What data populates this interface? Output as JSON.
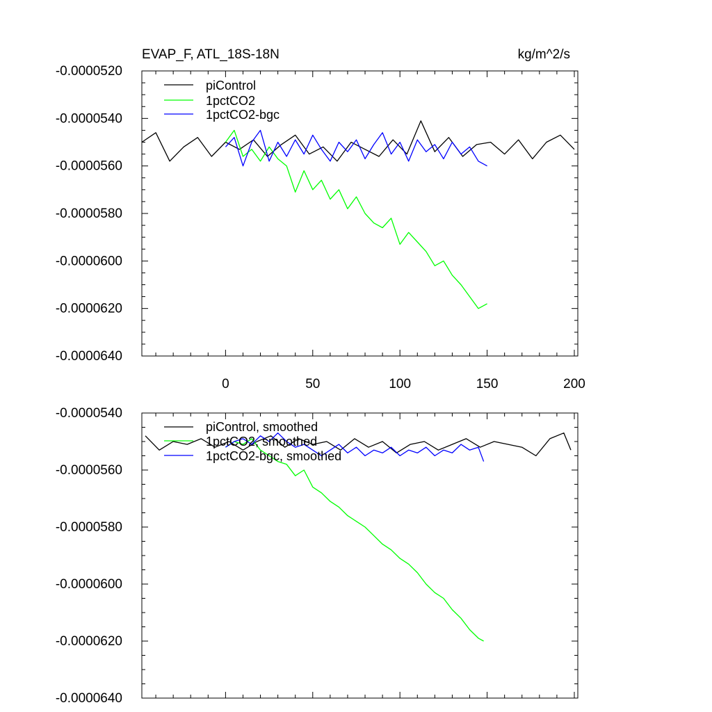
{
  "chart_data": [
    {
      "type": "line",
      "title": "EVAP_F, ATL_18S-18N",
      "units": "kg/m^2/s",
      "xlim": [
        -48,
        202
      ],
      "ylim": [
        -6.4e-05,
        -5.2e-05
      ],
      "x_ticks": [
        0,
        50,
        100,
        150,
        200
      ],
      "x_tick_labels": [
        "0",
        "50",
        "100",
        "150",
        "200"
      ],
      "y_ticks": [
        -5.2e-05,
        -5.4e-05,
        -5.6e-05,
        -5.8e-05,
        -6e-05,
        -6.2e-05,
        -6.4e-05
      ],
      "y_tick_labels": [
        "-0.0000520",
        "-0.0000540",
        "-0.0000560",
        "-0.0000580",
        "-0.0000600",
        "-0.0000620",
        "-0.0000640"
      ],
      "legend_position": "top-left",
      "series": [
        {
          "name": "piControl",
          "color": "#000000",
          "x": [
            -48,
            -40,
            -32,
            -24,
            -16,
            -8,
            0,
            8,
            16,
            24,
            32,
            40,
            48,
            56,
            64,
            72,
            80,
            88,
            96,
            104,
            112,
            120,
            128,
            136,
            144,
            152,
            160,
            168,
            176,
            184,
            192,
            200
          ],
          "y": [
            -5.5e-05,
            -5.46e-05,
            -5.58e-05,
            -5.52e-05,
            -5.48e-05,
            -5.56e-05,
            -5.5e-05,
            -5.53e-05,
            -5.49e-05,
            -5.56e-05,
            -5.51e-05,
            -5.47e-05,
            -5.55e-05,
            -5.52e-05,
            -5.58e-05,
            -5.5e-05,
            -5.53e-05,
            -5.56e-05,
            -5.49e-05,
            -5.55e-05,
            -5.41e-05,
            -5.54e-05,
            -5.48e-05,
            -5.56e-05,
            -5.51e-05,
            -5.5e-05,
            -5.55e-05,
            -5.49e-05,
            -5.57e-05,
            -5.5e-05,
            -5.47e-05,
            -5.53e-05
          ]
        },
        {
          "name": "1pctCO2",
          "color": "#00ff00",
          "x": [
            0,
            5,
            10,
            15,
            20,
            25,
            30,
            35,
            40,
            45,
            50,
            55,
            60,
            65,
            70,
            75,
            80,
            85,
            90,
            95,
            100,
            105,
            110,
            115,
            120,
            125,
            130,
            135,
            140,
            145,
            150
          ],
          "y": [
            -5.5e-05,
            -5.45e-05,
            -5.56e-05,
            -5.53e-05,
            -5.58e-05,
            -5.52e-05,
            -5.57e-05,
            -5.6e-05,
            -5.71e-05,
            -5.62e-05,
            -5.7e-05,
            -5.66e-05,
            -5.74e-05,
            -5.7e-05,
            -5.78e-05,
            -5.73e-05,
            -5.8e-05,
            -5.84e-05,
            -5.86e-05,
            -5.82e-05,
            -5.93e-05,
            -5.88e-05,
            -5.92e-05,
            -5.96e-05,
            -6.02e-05,
            -6e-05,
            -6.06e-05,
            -6.1e-05,
            -6.15e-05,
            -6.2e-05,
            -6.18e-05
          ]
        },
        {
          "name": "1pctCO2-bgc",
          "color": "#0000ff",
          "x": [
            0,
            5,
            10,
            15,
            20,
            25,
            30,
            35,
            40,
            45,
            50,
            55,
            60,
            65,
            70,
            75,
            80,
            85,
            90,
            95,
            100,
            105,
            110,
            115,
            120,
            125,
            130,
            135,
            140,
            145,
            150
          ],
          "y": [
            -5.52e-05,
            -5.48e-05,
            -5.6e-05,
            -5.5e-05,
            -5.45e-05,
            -5.58e-05,
            -5.5e-05,
            -5.56e-05,
            -5.49e-05,
            -5.55e-05,
            -5.47e-05,
            -5.53e-05,
            -5.58e-05,
            -5.5e-05,
            -5.54e-05,
            -5.49e-05,
            -5.57e-05,
            -5.51e-05,
            -5.46e-05,
            -5.55e-05,
            -5.5e-05,
            -5.58e-05,
            -5.49e-05,
            -5.54e-05,
            -5.51e-05,
            -5.57e-05,
            -5.5e-05,
            -5.55e-05,
            -5.52e-05,
            -5.58e-05,
            -5.6e-05
          ]
        }
      ]
    },
    {
      "type": "line",
      "title": "",
      "units": "",
      "xlim": [
        -48,
        202
      ],
      "ylim": [
        -6.4e-05,
        -5.4e-05
      ],
      "x_ticks": [
        0,
        50,
        100,
        150,
        200
      ],
      "x_tick_labels": [],
      "y_ticks": [
        -5.4e-05,
        -5.6e-05,
        -5.8e-05,
        -6e-05,
        -6.2e-05,
        -6.4e-05
      ],
      "y_tick_labels": [
        "-0.0000540",
        "-0.0000560",
        "-0.0000580",
        "-0.0000600",
        "-0.0000620",
        "-0.0000640"
      ],
      "legend_position": "top-left",
      "series": [
        {
          "name": "piControl, smoothed",
          "color": "#000000",
          "x": [
            -46,
            -38,
            -30,
            -22,
            -14,
            -6,
            2,
            10,
            18,
            26,
            34,
            42,
            50,
            58,
            66,
            74,
            82,
            90,
            98,
            106,
            114,
            122,
            130,
            138,
            146,
            154,
            162,
            170,
            178,
            186,
            194,
            198
          ],
          "y": [
            -5.48e-05,
            -5.53e-05,
            -5.5e-05,
            -5.51e-05,
            -5.49e-05,
            -5.52e-05,
            -5.5e-05,
            -5.53e-05,
            -5.5e-05,
            -5.48e-05,
            -5.52e-05,
            -5.49e-05,
            -5.51e-05,
            -5.5e-05,
            -5.53e-05,
            -5.49e-05,
            -5.52e-05,
            -5.5e-05,
            -5.54e-05,
            -5.51e-05,
            -5.5e-05,
            -5.53e-05,
            -5.51e-05,
            -5.49e-05,
            -5.52e-05,
            -5.5e-05,
            -5.51e-05,
            -5.52e-05,
            -5.55e-05,
            -5.49e-05,
            -5.47e-05,
            -5.53e-05
          ]
        },
        {
          "name": "1pctCO2, smoothed",
          "color": "#00ff00",
          "x": [
            0,
            5,
            10,
            15,
            20,
            25,
            30,
            35,
            40,
            45,
            50,
            55,
            60,
            65,
            70,
            75,
            80,
            85,
            90,
            95,
            100,
            105,
            110,
            115,
            120,
            125,
            130,
            135,
            140,
            145,
            148
          ],
          "y": [
            -5.52e-05,
            -5.5e-05,
            -5.51e-05,
            -5.49e-05,
            -5.53e-05,
            -5.55e-05,
            -5.57e-05,
            -5.58e-05,
            -5.62e-05,
            -5.6e-05,
            -5.66e-05,
            -5.68e-05,
            -5.71e-05,
            -5.73e-05,
            -5.76e-05,
            -5.78e-05,
            -5.8e-05,
            -5.83e-05,
            -5.86e-05,
            -5.88e-05,
            -5.91e-05,
            -5.93e-05,
            -5.96e-05,
            -6e-05,
            -6.03e-05,
            -6.05e-05,
            -6.09e-05,
            -6.12e-05,
            -6.16e-05,
            -6.19e-05,
            -6.2e-05
          ]
        },
        {
          "name": "1pctCO2-bgc, smoothed",
          "color": "#0000ff",
          "x": [
            0,
            5,
            10,
            15,
            20,
            25,
            30,
            35,
            40,
            45,
            50,
            55,
            60,
            65,
            70,
            75,
            80,
            85,
            90,
            95,
            100,
            105,
            110,
            115,
            120,
            125,
            130,
            135,
            140,
            145,
            148
          ],
          "y": [
            -5.52e-05,
            -5.5e-05,
            -5.49e-05,
            -5.51e-05,
            -5.48e-05,
            -5.5e-05,
            -5.47e-05,
            -5.5e-05,
            -5.52e-05,
            -5.51e-05,
            -5.53e-05,
            -5.55e-05,
            -5.53e-05,
            -5.51e-05,
            -5.54e-05,
            -5.52e-05,
            -5.55e-05,
            -5.53e-05,
            -5.54e-05,
            -5.52e-05,
            -5.55e-05,
            -5.53e-05,
            -5.54e-05,
            -5.52e-05,
            -5.55e-05,
            -5.53e-05,
            -5.54e-05,
            -5.51e-05,
            -5.53e-05,
            -5.52e-05,
            -5.57e-05
          ]
        }
      ]
    }
  ]
}
